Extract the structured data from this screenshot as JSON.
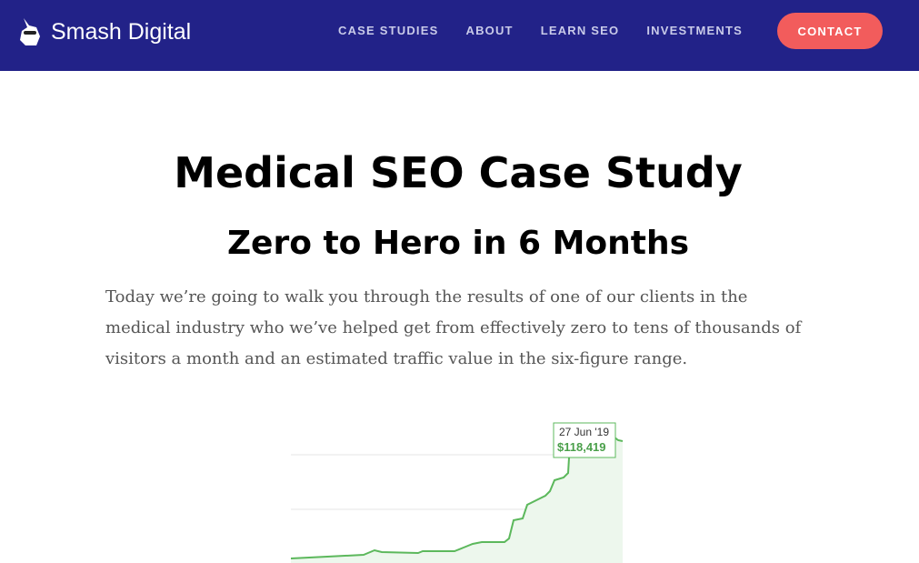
{
  "header": {
    "logo": "Smash Digital",
    "nav": [
      "CASE STUDIES",
      "ABOUT",
      "LEARN SEO",
      "INVESTMENTS"
    ],
    "cta": "CONTACT"
  },
  "hero": {
    "title": "Medical SEO Case Study",
    "subtitle": "Zero to Hero in 6 Months",
    "paragraph": "Today we’re going to walk you through the results of one of our clients in the medical industry who we’ve helped get from effectively zero to tens of thousands of visitors a month and an estimated traffic value in the six-figure range."
  },
  "figure": {
    "tooltip": {
      "date": "27 Jun '19",
      "value": "$118,419"
    }
  }
}
